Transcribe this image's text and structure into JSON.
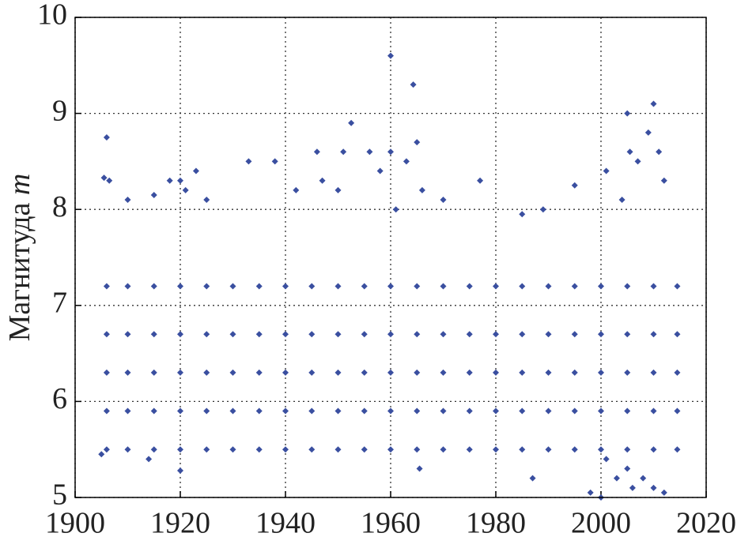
{
  "chart_data": {
    "type": "scatter",
    "ylabel": "Магнитуда",
    "ylabel_var": "m",
    "color": "#3a4fa0",
    "xlim": [
      1900,
      2020
    ],
    "xticks": [
      1900,
      1920,
      1940,
      1960,
      1980,
      2000,
      2020
    ],
    "ylim": [
      5,
      10
    ],
    "yticks": [
      5,
      6,
      7,
      8,
      9,
      10
    ],
    "grid": true,
    "x": [
      1906,
      1905.5,
      1906.5,
      1910,
      1915,
      1918,
      1920,
      1921,
      1923,
      1925,
      1933,
      1938,
      1942,
      1946,
      1947,
      1950,
      1951,
      1952.5,
      1956,
      1958,
      1960,
      1960,
      1961,
      1963,
      1964.3,
      1965,
      1966,
      1970,
      1977,
      1985,
      1989,
      1995,
      2001,
      2004,
      2005,
      2005.5,
      2007,
      2009,
      2010,
      2011,
      2012,
      1920,
      1965.5,
      1987,
      1998,
      2000,
      2003,
      2006,
      2008,
      2010,
      2012,
      1905,
      1914,
      2001,
      2005,
      1906,
      1906,
      1906,
      1906,
      1906,
      1910,
      1910,
      1910,
      1910,
      1910,
      1915,
      1915,
      1915,
      1915,
      1915,
      1920,
      1920,
      1920,
      1920,
      1920,
      1925,
      1925,
      1925,
      1925,
      1925,
      1930,
      1930,
      1930,
      1930,
      1930,
      1935,
      1935,
      1935,
      1935,
      1935,
      1940,
      1940,
      1940,
      1940,
      1940,
      1945,
      1945,
      1945,
      1945,
      1945,
      1950,
      1950,
      1950,
      1950,
      1950,
      1955,
      1955,
      1955,
      1955,
      1955,
      1960,
      1960,
      1960,
      1960,
      1960,
      1965,
      1965,
      1965,
      1965,
      1965,
      1970,
      1970,
      1970,
      1970,
      1970,
      1975,
      1975,
      1975,
      1975,
      1975,
      1980,
      1980,
      1980,
      1980,
      1980,
      1985,
      1985,
      1985,
      1985,
      1985,
      1990,
      1990,
      1990,
      1990,
      1990,
      1995,
      1995,
      1995,
      1995,
      1995,
      2000,
      2000,
      2000,
      2000,
      2000,
      2005,
      2005,
      2005,
      2005,
      2005,
      2010,
      2010,
      2010,
      2010,
      2010,
      2014.5,
      2014.5,
      2014.5,
      2014.5,
      2014.5
    ],
    "y": [
      8.75,
      8.33,
      8.3,
      8.1,
      8.15,
      8.3,
      8.3,
      8.2,
      8.4,
      8.1,
      8.5,
      8.5,
      8.2,
      8.6,
      8.3,
      8.2,
      8.6,
      8.9,
      8.6,
      8.4,
      9.6,
      8.6,
      8.0,
      8.5,
      9.3,
      8.7,
      8.2,
      8.1,
      8.3,
      7.95,
      8.0,
      8.25,
      8.4,
      8.1,
      9.0,
      8.6,
      8.5,
      8.8,
      9.1,
      8.6,
      8.3,
      5.28,
      5.3,
      5.2,
      5.05,
      5.0,
      5.2,
      5.1,
      5.2,
      5.1,
      5.05,
      5.45,
      5.4,
      5.4,
      5.3,
      5.5,
      5.9,
      6.3,
      6.7,
      7.2,
      5.5,
      5.9,
      6.3,
      6.7,
      7.2,
      5.5,
      5.9,
      6.3,
      6.7,
      7.2,
      5.5,
      5.9,
      6.3,
      6.7,
      7.2,
      5.5,
      5.9,
      6.3,
      6.7,
      7.2,
      5.5,
      5.9,
      6.3,
      6.7,
      7.2,
      5.5,
      5.9,
      6.3,
      6.7,
      7.2,
      5.5,
      5.9,
      6.3,
      6.7,
      7.2,
      5.5,
      5.9,
      6.3,
      6.7,
      7.2,
      5.5,
      5.9,
      6.3,
      6.7,
      7.2,
      5.5,
      5.9,
      6.3,
      6.7,
      7.2,
      5.5,
      5.9,
      6.3,
      6.7,
      7.2,
      5.5,
      5.9,
      6.3,
      6.7,
      7.2,
      5.5,
      5.9,
      6.3,
      6.7,
      7.2,
      5.5,
      5.9,
      6.3,
      6.7,
      7.2,
      5.5,
      5.9,
      6.3,
      6.7,
      7.2,
      5.5,
      5.9,
      6.3,
      6.7,
      7.2,
      5.5,
      5.9,
      6.3,
      6.7,
      7.2,
      5.5,
      5.9,
      6.3,
      6.7,
      7.2,
      5.5,
      5.9,
      6.3,
      6.7,
      7.2,
      5.5,
      5.9,
      6.3,
      6.7,
      7.2,
      5.5,
      5.9,
      6.3,
      6.7,
      7.2,
      5.5,
      5.9,
      6.3,
      6.7,
      7.2
    ]
  }
}
